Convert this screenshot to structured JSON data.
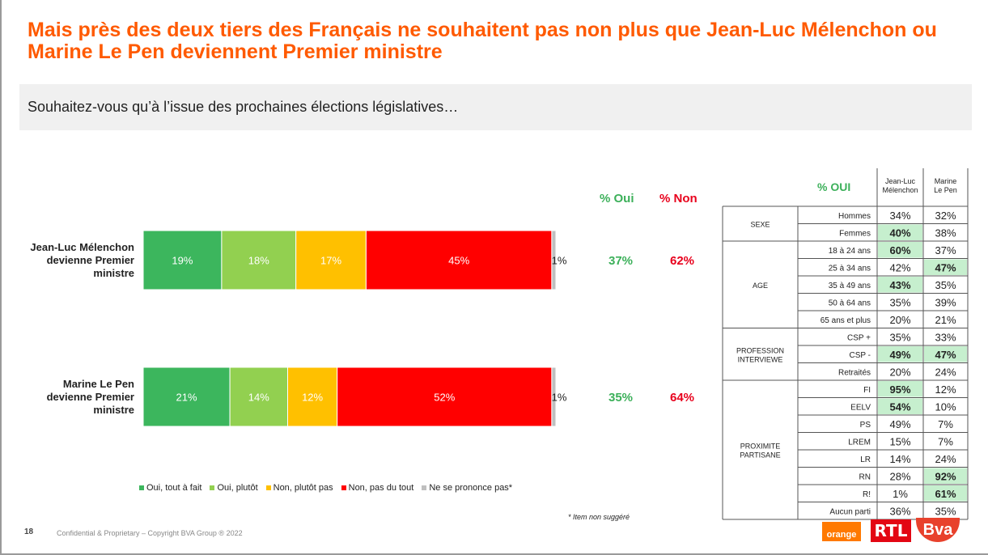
{
  "title": "Mais près des deux tiers des Français ne souhaitent pas non plus que Jean-Luc Mélenchon ou Marine Le Pen deviennent Premier ministre",
  "question": "Souhaitez-vous qu’à l’issue des prochaines élections législatives…",
  "headers": {
    "oui": "% Oui",
    "non": "% Non"
  },
  "colors": {
    "oui_tout_a_fait": "#3cb65d",
    "oui_plutot": "#92d050",
    "non_plutot_pas": "#ffc000",
    "non_pas_du_tout": "#ff0000",
    "nsp": "#bfbfbf",
    "title_orange": "#ff5a00",
    "highlight_green": "#c6efce"
  },
  "chart_data": [
    {
      "type": "bar",
      "orientation": "horizontal",
      "stacked": true,
      "categories": [
        {
          "label": "Jean-Luc Mélenchon devienne Premier ministre",
          "lines": [
            "Jean-Luc Mélenchon",
            "devienne Premier",
            "ministre"
          ]
        },
        {
          "label": "Marine Le Pen devienne Premier ministre",
          "lines": [
            "Marine Le Pen",
            "devienne Premier",
            "ministre"
          ]
        }
      ],
      "series": [
        {
          "name": "Oui, tout à fait",
          "values": [
            19,
            21
          ]
        },
        {
          "name": "Oui, plutôt",
          "values": [
            18,
            14
          ]
        },
        {
          "name": "Non, plutôt pas",
          "values": [
            17,
            12
          ]
        },
        {
          "name": "Non, pas du tout",
          "values": [
            45,
            52
          ]
        },
        {
          "name": "Ne se prononce pas*",
          "values": [
            1,
            1
          ]
        }
      ],
      "data_labels": [
        [
          "19%",
          "18%",
          "17%",
          "45%",
          "1%"
        ],
        [
          "21%",
          "14%",
          "12%",
          "52%",
          "1%"
        ]
      ],
      "totals": {
        "oui": [
          "37%",
          "35%"
        ],
        "non": [
          "62%",
          "64%"
        ]
      },
      "legend_position": "bottom"
    },
    {
      "type": "table",
      "header": "% OUI",
      "columns": [
        "Jean-Luc Mélenchon",
        "Marine Le Pen"
      ],
      "column_lines": [
        [
          "Jean-Luc",
          "Mélenchon"
        ],
        [
          "Marine",
          "Le Pen"
        ]
      ],
      "groups": [
        {
          "name": "SEXE",
          "lines": [
            "SEXE"
          ],
          "rows": [
            {
              "label": "Hommes",
              "values": [
                "34%",
                "32%"
              ],
              "highlight": [
                false,
                false
              ]
            },
            {
              "label": "Femmes",
              "values": [
                "40%",
                "38%"
              ],
              "highlight": [
                true,
                false
              ]
            }
          ]
        },
        {
          "name": "AGE",
          "lines": [
            "AGE"
          ],
          "rows": [
            {
              "label": "18 à 24 ans",
              "values": [
                "60%",
                "37%"
              ],
              "highlight": [
                true,
                false
              ]
            },
            {
              "label": "25 à 34 ans",
              "values": [
                "42%",
                "47%"
              ],
              "highlight": [
                false,
                true
              ]
            },
            {
              "label": "35 à 49 ans",
              "values": [
                "43%",
                "35%"
              ],
              "highlight": [
                true,
                false
              ]
            },
            {
              "label": "50 à 64 ans",
              "values": [
                "35%",
                "39%"
              ],
              "highlight": [
                false,
                false
              ]
            },
            {
              "label": "65 ans et plus",
              "values": [
                "20%",
                "21%"
              ],
              "highlight": [
                false,
                false
              ]
            }
          ]
        },
        {
          "name": "PROFESSION INTERVIEWE",
          "lines": [
            "PROFESSION",
            "INTERVIEWE"
          ],
          "rows": [
            {
              "label": "CSP +",
              "values": [
                "35%",
                "33%"
              ],
              "highlight": [
                false,
                false
              ]
            },
            {
              "label": "CSP -",
              "values": [
                "49%",
                "47%"
              ],
              "highlight": [
                true,
                true
              ]
            },
            {
              "label": "Retraités",
              "values": [
                "20%",
                "24%"
              ],
              "highlight": [
                false,
                false
              ]
            }
          ]
        },
        {
          "name": "PROXIMITE PARTISANE",
          "lines": [
            "PROXIMITE",
            "PARTISANE"
          ],
          "rows": [
            {
              "label": "FI",
              "values": [
                "95%",
                "12%"
              ],
              "highlight": [
                true,
                false
              ]
            },
            {
              "label": "EELV",
              "values": [
                "54%",
                "10%"
              ],
              "highlight": [
                true,
                false
              ]
            },
            {
              "label": "PS",
              "values": [
                "49%",
                "7%"
              ],
              "highlight": [
                false,
                false
              ]
            },
            {
              "label": "LREM",
              "values": [
                "15%",
                "7%"
              ],
              "highlight": [
                false,
                false
              ]
            },
            {
              "label": "LR",
              "values": [
                "14%",
                "24%"
              ],
              "highlight": [
                false,
                false
              ]
            },
            {
              "label": "RN",
              "values": [
                "28%",
                "92%"
              ],
              "highlight": [
                false,
                true
              ]
            },
            {
              "label": "R!",
              "values": [
                "1%",
                "61%"
              ],
              "highlight": [
                false,
                true
              ]
            },
            {
              "label": "Aucun parti",
              "values": [
                "36%",
                "35%"
              ],
              "highlight": [
                false,
                false
              ]
            }
          ]
        }
      ]
    }
  ],
  "note": "* Item non suggéré",
  "footer": {
    "page": "18",
    "text": "Confidential & Proprietary – Copyright BVA Group ®  2022"
  },
  "logos": {
    "orange": "orange",
    "rtl": "RTL",
    "bva": "Bva"
  }
}
